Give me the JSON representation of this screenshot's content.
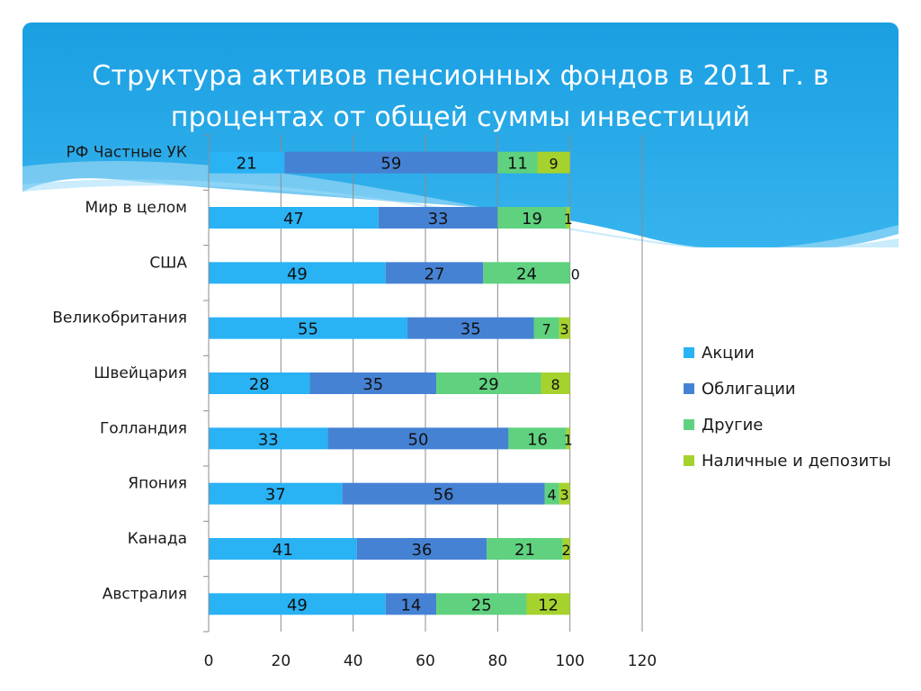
{
  "slide": {
    "title": "Структура активов пенсионных фондов в 2011 г. в процентах от общей суммы инвестиций"
  },
  "chart_data": {
    "type": "bar",
    "orientation": "horizontal",
    "stacked": true,
    "title": "",
    "xlabel": "",
    "ylabel": "",
    "xlim": [
      0,
      120
    ],
    "xticks": [
      0,
      20,
      40,
      60,
      80,
      100,
      120
    ],
    "grid": true,
    "legend_position": "right",
    "categories": [
      "РФ Частные УК",
      "Мир в целом",
      "США",
      "Великобритания",
      "Швейцария",
      "Голландия",
      "Япония",
      "Канада",
      "Австралия"
    ],
    "series": [
      {
        "name": "Акции",
        "color": "#29b2f4",
        "values": [
          21,
          47,
          49,
          55,
          28,
          33,
          37,
          41,
          49
        ]
      },
      {
        "name": "Облигации",
        "color": "#4682d4",
        "values": [
          59,
          33,
          27,
          35,
          35,
          50,
          56,
          36,
          14
        ]
      },
      {
        "name": "Другие",
        "color": "#5fd17f",
        "values": [
          11,
          19,
          24,
          7,
          29,
          16,
          4,
          21,
          25
        ]
      },
      {
        "name": "Наличные и депозиты",
        "color": "#a6d22e",
        "values": [
          9,
          1,
          0,
          3,
          8,
          1,
          3,
          2,
          12
        ]
      }
    ]
  }
}
